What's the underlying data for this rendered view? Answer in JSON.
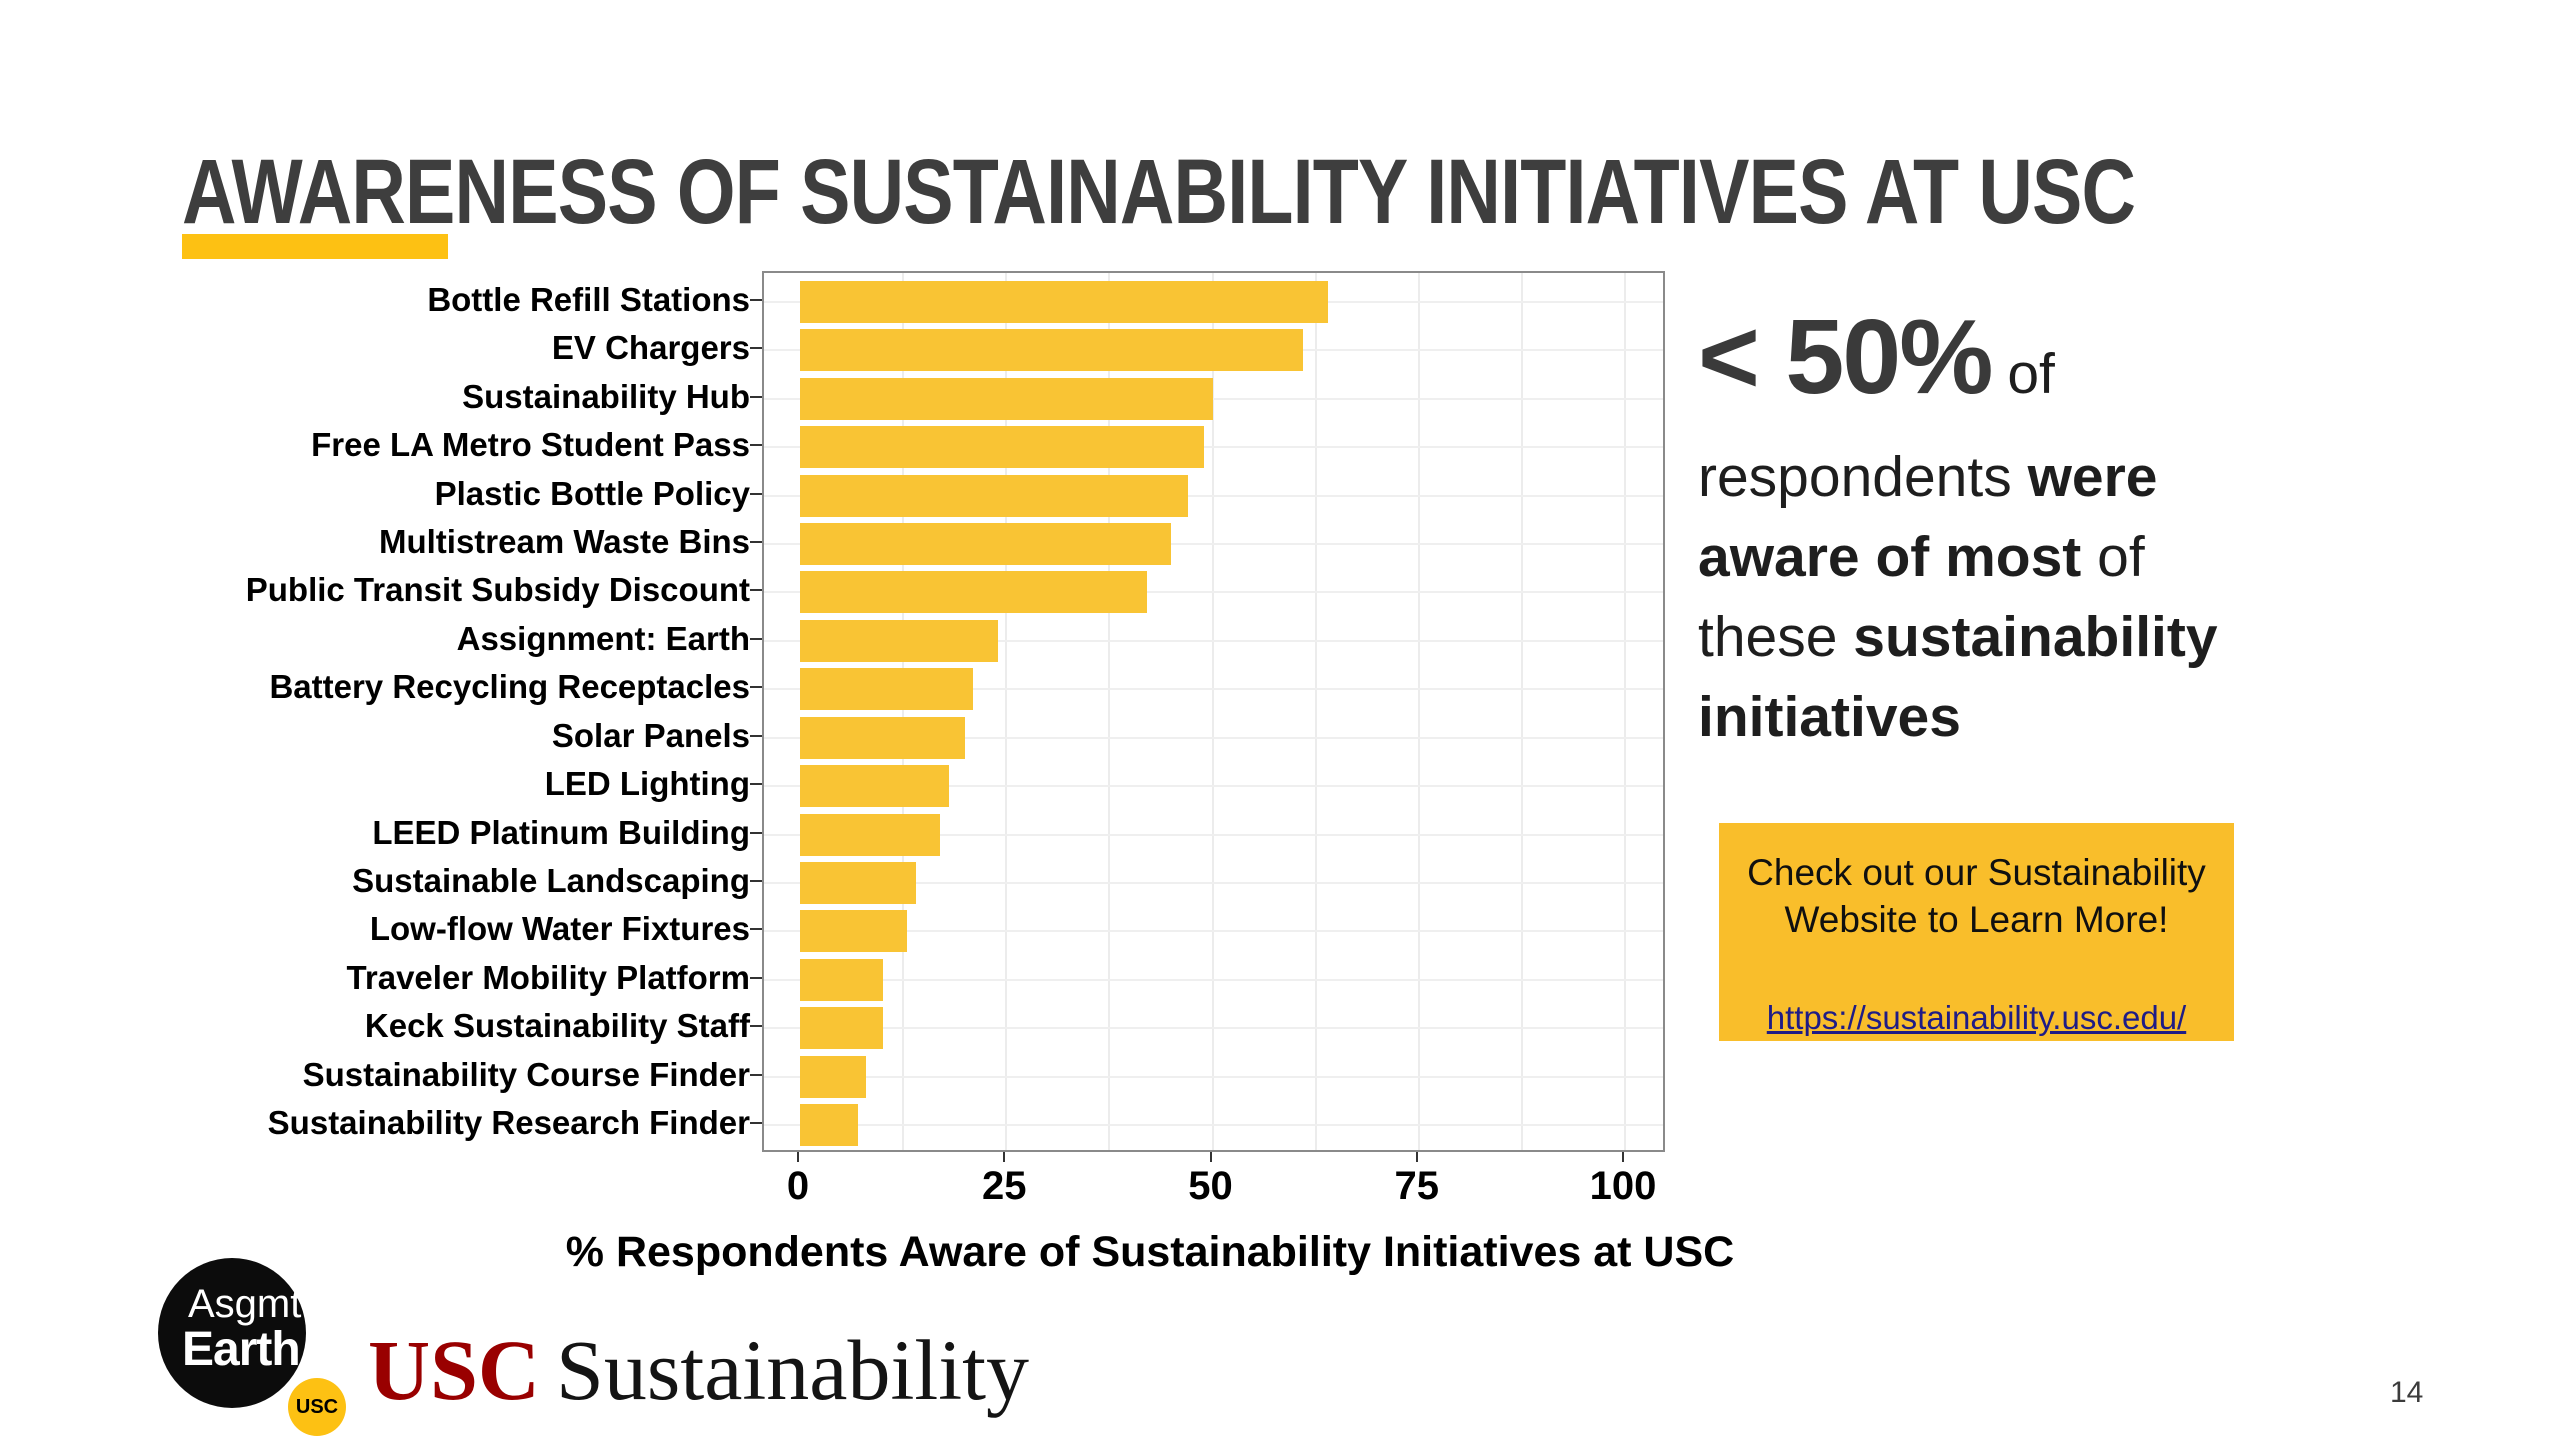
{
  "slide": {
    "title": "AWARENESS OF SUSTAINABILITY INITIATIVES AT USC",
    "page_number": "14",
    "accent_gold": "#FDC113"
  },
  "chart_data": {
    "type": "bar",
    "orientation": "horizontal",
    "title": "",
    "xlabel": "% Respondents Aware of Sustainability Initiatives at USC",
    "ylabel": "",
    "xlim": [
      0,
      106
    ],
    "x_ticks": [
      0,
      25,
      50,
      75,
      100
    ],
    "grid": "vertical gridlines every 12.5, horizontal gridline per category",
    "legend": "none",
    "bar_color": "#F9C434",
    "gridline_color": "#ECECEC",
    "panel_border_color": "#8A8A8A",
    "categories": [
      "Bottle Refill Stations",
      "EV Chargers",
      "Sustainability Hub",
      "Free LA Metro Student Pass",
      "Plastic Bottle Policy",
      "Multistream Waste Bins",
      "Public Transit Subsidy Discount",
      "Assignment: Earth",
      "Battery Recycling Receptacles",
      "Solar Panels",
      "LED Lighting",
      "LEED Platinum Building",
      "Sustainable Landscaping",
      "Low-flow Water Fixtures",
      "Traveler Mobility Platform",
      "Keck Sustainability Staff",
      "Sustainability Course Finder",
      "Sustainability Research Finder"
    ],
    "values": [
      64,
      61,
      50,
      49,
      47,
      45,
      42,
      24,
      21,
      20,
      18,
      17,
      14,
      13,
      10,
      10,
      8,
      7
    ]
  },
  "takeaway": {
    "lines": [
      {
        "first": true,
        "segments": [
          {
            "t": "< 50%",
            "cls": "huge"
          },
          {
            "t": " of",
            "cls": "reg"
          }
        ]
      },
      {
        "first": false,
        "segments": [
          {
            "t": "respondents ",
            "cls": "reg"
          },
          {
            "t": "were",
            "cls": "bold"
          }
        ]
      },
      {
        "first": false,
        "segments": [
          {
            "t": "aware of most ",
            "cls": "bold"
          },
          {
            "t": "of",
            "cls": "reg"
          }
        ]
      },
      {
        "first": false,
        "segments": [
          {
            "t": "these ",
            "cls": "reg"
          },
          {
            "t": "sustainability",
            "cls": "bold"
          }
        ]
      },
      {
        "first": false,
        "segments": [
          {
            "t": "initiatives",
            "cls": "bold"
          }
        ]
      }
    ]
  },
  "callout": {
    "heading_line1": "Check out our Sustainability",
    "heading_line2": "Website to Learn More!",
    "link": "https://sustainability.usc.edu/",
    "background": "#F9BE2B",
    "link_color": "#1F1C86"
  },
  "footer": {
    "asgmt_line1": "Asgmt",
    "asgmt_line2": "Earth",
    "asgmt_badge": "USC",
    "brand_prefix": "USC",
    "brand_name": "Sustainability",
    "brand_prefix_color": "#990000"
  }
}
